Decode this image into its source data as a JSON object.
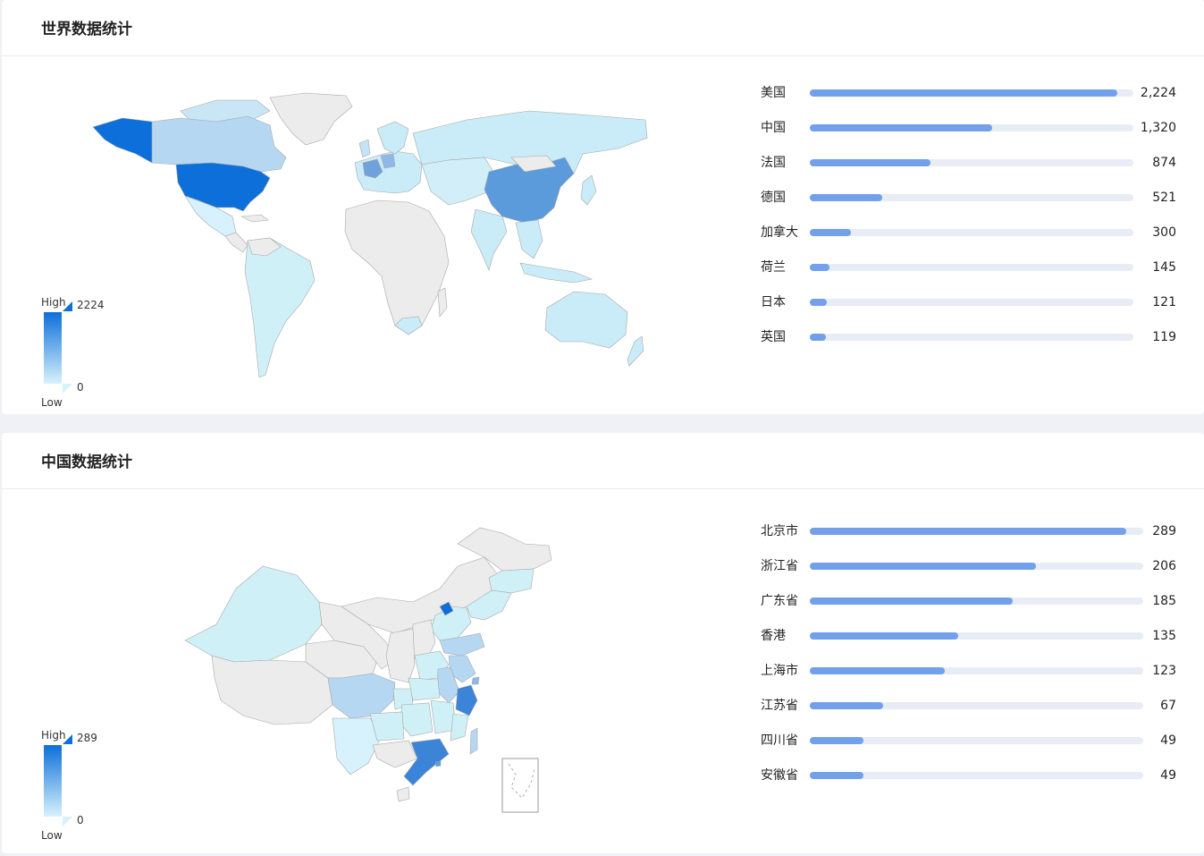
{
  "world": {
    "title": "世界数据统计",
    "legend": {
      "high": "High",
      "low": "Low",
      "max": "2224",
      "min": "0"
    },
    "ranking": [
      {
        "name": "美国",
        "value": "2,224",
        "num": 2224
      },
      {
        "name": "中国",
        "value": "1,320",
        "num": 1320
      },
      {
        "name": "法国",
        "value": "874",
        "num": 874
      },
      {
        "name": "德国",
        "value": "521",
        "num": 521
      },
      {
        "name": "加拿大",
        "value": "300",
        "num": 300
      },
      {
        "name": "荷兰",
        "value": "145",
        "num": 145
      },
      {
        "name": "日本",
        "value": "121",
        "num": 121
      },
      {
        "name": "英国",
        "value": "119",
        "num": 119
      }
    ]
  },
  "china": {
    "title": "中国数据统计",
    "legend": {
      "high": "High",
      "low": "Low",
      "max": "289",
      "min": "0"
    },
    "ranking": [
      {
        "name": "北京市",
        "value": "289",
        "num": 289
      },
      {
        "name": "浙江省",
        "value": "206",
        "num": 206
      },
      {
        "name": "广东省",
        "value": "185",
        "num": 185
      },
      {
        "name": "香港",
        "value": "135",
        "num": 135
      },
      {
        "name": "上海市",
        "value": "123",
        "num": 123
      },
      {
        "name": "江苏省",
        "value": "67",
        "num": 67
      },
      {
        "name": "四川省",
        "value": "49",
        "num": 49
      },
      {
        "name": "安徽省",
        "value": "49",
        "num": 49
      }
    ]
  },
  "colors": {
    "max": "#0d6fd9",
    "min": "#d7f2fc",
    "nodata": "#ececec",
    "bar": "#73a0ea",
    "track": "#e8ecf4"
  }
}
